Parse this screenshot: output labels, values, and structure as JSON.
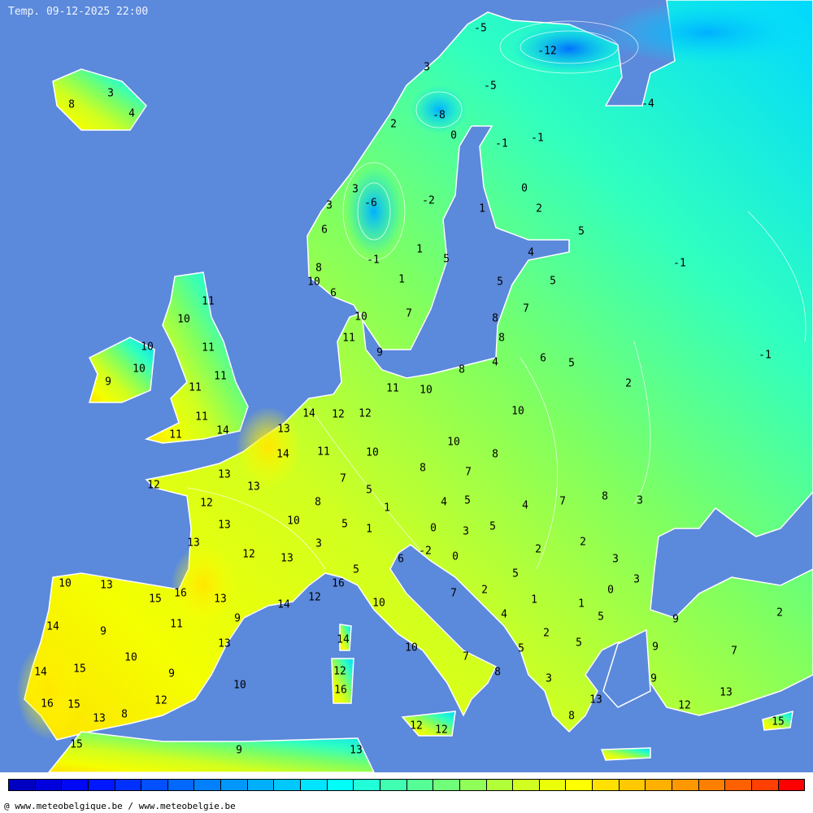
{
  "title": "Temp. 09-12-2025 22:00",
  "credit": "@ www.meteobelgique.be / www.meteobelgie.be",
  "colors": {
    "sea": "#5b89db",
    "isoline": "#ffffff",
    "label": "#000000"
  },
  "colorbar": [
    "#0000c0",
    "#0000dd",
    "#0008f5",
    "#0018ff",
    "#0030ff",
    "#0050ff",
    "#0068ff",
    "#0080ff",
    "#0098ff",
    "#00b0ff",
    "#00c8ff",
    "#00e4ff",
    "#00fff8",
    "#20ffd8",
    "#40ffb0",
    "#55ff95",
    "#70ff78",
    "#90ff58",
    "#b0ff38",
    "#d0ff20",
    "#eaff08",
    "#ffff00",
    "#ffe000",
    "#ffc800",
    "#ffb000",
    "#ff9800",
    "#ff8000",
    "#ff6000",
    "#ff4000",
    "#ff0000"
  ],
  "temperatures": [
    "-5",
    "3",
    "-12",
    "-5",
    "-4",
    "-8",
    "2",
    "0",
    "-1",
    "-1",
    "3",
    "8",
    "4",
    "3",
    "-6",
    "-2",
    "3",
    "0",
    "1",
    "2",
    "6",
    "5",
    "1",
    "-1",
    "5",
    "4",
    "-1",
    "8",
    "1",
    "10",
    "5",
    "5",
    "6",
    "11",
    "7",
    "7",
    "10",
    "10",
    "8",
    "11",
    "8",
    "10",
    "11",
    "9",
    "-1",
    "10",
    "4",
    "6",
    "5",
    "11",
    "8",
    "9",
    "11",
    "2",
    "11",
    "10",
    "14",
    "12",
    "12",
    "11",
    "10",
    "13",
    "14",
    "11",
    "10",
    "14",
    "11",
    "10",
    "8",
    "8",
    "7",
    "13",
    "7",
    "13",
    "12",
    "5",
    "8",
    "3",
    "12",
    "8",
    "1",
    "4",
    "5",
    "4",
    "7",
    "10",
    "13",
    "5",
    "1",
    "0",
    "3",
    "5",
    "2",
    "13",
    "3",
    "-2",
    "0",
    "2",
    "12",
    "13",
    "6",
    "3",
    "5",
    "5",
    "3",
    "10",
    "13",
    "16",
    "16",
    "15",
    "13",
    "12",
    "7",
    "2",
    "0",
    "14",
    "10",
    "1",
    "1",
    "9",
    "4",
    "5",
    "2",
    "9",
    "14",
    "9",
    "11",
    "2",
    "5",
    "13",
    "14",
    "9",
    "7",
    "5",
    "10",
    "10",
    "7",
    "15",
    "14",
    "9",
    "12",
    "8",
    "9",
    "3",
    "10",
    "16",
    "13",
    "13",
    "16",
    "15",
    "12",
    "12",
    "13",
    "8",
    "8",
    "15",
    "12",
    "12",
    "15",
    "9",
    "13"
  ]
}
